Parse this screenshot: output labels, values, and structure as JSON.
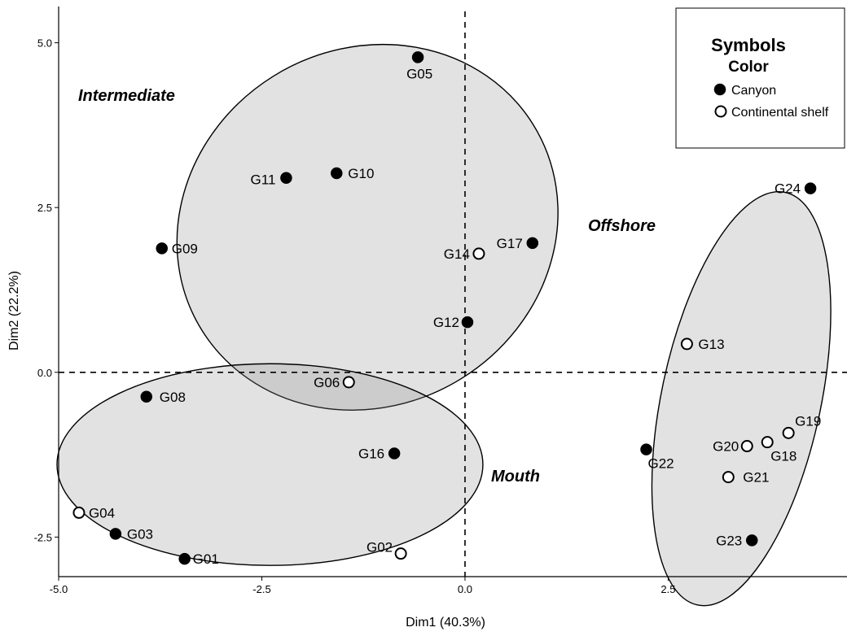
{
  "chart_data": {
    "type": "scatter",
    "xlabel": "Dim1 (40.3%)",
    "ylabel": "Dim2 (22.2%)",
    "xlim": [
      -5.0,
      4.7
    ],
    "ylim": [
      -3.1,
      5.55
    ],
    "x_ticks": [
      {
        "value": -5.0,
        "label": "-5.0"
      },
      {
        "value": -2.5,
        "label": "-2.5"
      },
      {
        "value": 0.0,
        "label": "0.0"
      },
      {
        "value": 2.5,
        "label": "2.5"
      }
    ],
    "y_ticks": [
      {
        "value": -2.5,
        "label": "-2.5"
      },
      {
        "value": 0.0,
        "label": "0.0"
      },
      {
        "value": 2.5,
        "label": "2.5"
      },
      {
        "value": 5.0,
        "label": "5.0"
      }
    ],
    "grid": false,
    "reference_lines": {
      "x": 0,
      "y": 0,
      "style": "dashed"
    },
    "legend": {
      "title": "Symbols",
      "subtitle": "Color",
      "placement": "top-right",
      "entries": [
        {
          "label": "Canyon",
          "marker": "filled"
        },
        {
          "label": "Continental shelf",
          "marker": "open"
        }
      ]
    },
    "series": [
      {
        "name": "Canyon",
        "marker": "filled",
        "points": [
          {
            "label": "G01",
            "x": -3.45,
            "y": -2.83
          },
          {
            "label": "G03",
            "x": -4.3,
            "y": -2.45
          },
          {
            "label": "G05",
            "x": -0.58,
            "y": 4.78
          },
          {
            "label": "G08",
            "x": -3.92,
            "y": -0.37
          },
          {
            "label": "G09",
            "x": -3.73,
            "y": 1.88
          },
          {
            "label": "G10",
            "x": -1.58,
            "y": 3.02
          },
          {
            "label": "G11",
            "x": -2.2,
            "y": 2.95
          },
          {
            "label": "G12",
            "x": 0.03,
            "y": 0.76
          },
          {
            "label": "G16",
            "x": -0.87,
            "y": -1.23
          },
          {
            "label": "G17",
            "x": 0.83,
            "y": 1.96
          },
          {
            "label": "G22",
            "x": 2.23,
            "y": -1.17
          },
          {
            "label": "G23",
            "x": 3.53,
            "y": -2.55
          },
          {
            "label": "G24",
            "x": 4.25,
            "y": 2.79
          }
        ]
      },
      {
        "name": "Continental shelf",
        "marker": "open",
        "points": [
          {
            "label": "G02",
            "x": -0.79,
            "y": -2.75
          },
          {
            "label": "G04",
            "x": -4.75,
            "y": -2.13
          },
          {
            "label": "G06",
            "x": -1.43,
            "y": -0.15
          },
          {
            "label": "G13",
            "x": 2.73,
            "y": 0.43
          },
          {
            "label": "G14",
            "x": 0.17,
            "y": 1.8
          },
          {
            "label": "G18",
            "x": 3.72,
            "y": -1.06
          },
          {
            "label": "G19",
            "x": 3.98,
            "y": -0.92
          },
          {
            "label": "G20",
            "x": 3.47,
            "y": -1.12
          },
          {
            "label": "G21",
            "x": 3.24,
            "y": -1.59
          }
        ]
      }
    ],
    "groups": [
      {
        "label": "Intermediate",
        "center": [
          -1.2,
          2.2
        ],
        "rx": 2.4,
        "ry": 2.7,
        "rotation_deg": -32
      },
      {
        "label": "Mouth",
        "center": [
          -2.4,
          -1.4
        ],
        "rx": 2.62,
        "ry": 1.53,
        "rotation_deg": 0
      },
      {
        "label": "Offshore",
        "center": [
          3.4,
          -0.4
        ],
        "rx": 0.98,
        "ry": 3.2,
        "rotation_deg": 12
      }
    ]
  }
}
